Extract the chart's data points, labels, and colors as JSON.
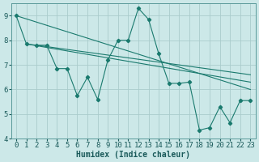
{
  "xlabel": "Humidex (Indice chaleur)",
  "ylabel": "",
  "bg_color": "#cce8e8",
  "grid_color": "#aacccc",
  "line_color": "#1a7a6e",
  "xlim": [
    -0.5,
    23.5
  ],
  "ylim": [
    4,
    9.5
  ],
  "yticks": [
    4,
    5,
    6,
    7,
    8,
    9
  ],
  "xticks": [
    0,
    1,
    2,
    3,
    4,
    5,
    6,
    7,
    8,
    9,
    10,
    11,
    12,
    13,
    14,
    15,
    16,
    17,
    18,
    19,
    20,
    21,
    22,
    23
  ],
  "series": [
    [
      0,
      9.0
    ],
    [
      1,
      7.85
    ],
    [
      2,
      7.8
    ],
    [
      3,
      7.8
    ],
    [
      4,
      6.85
    ],
    [
      5,
      6.85
    ],
    [
      6,
      5.75
    ],
    [
      7,
      6.5
    ],
    [
      8,
      5.6
    ],
    [
      9,
      7.2
    ],
    [
      10,
      8.0
    ],
    [
      11,
      8.0
    ],
    [
      12,
      9.3
    ],
    [
      13,
      8.85
    ],
    [
      14,
      7.45
    ],
    [
      15,
      6.25
    ],
    [
      16,
      6.25
    ],
    [
      17,
      6.3
    ],
    [
      18,
      4.35
    ],
    [
      19,
      4.45
    ],
    [
      20,
      5.3
    ],
    [
      21,
      4.65
    ],
    [
      22,
      5.55
    ],
    [
      23,
      5.55
    ]
  ],
  "trend_lines": [
    {
      "x": [
        0,
        23
      ],
      "y": [
        9.0,
        6.0
      ]
    },
    {
      "x": [
        1,
        23
      ],
      "y": [
        7.85,
        6.3
      ]
    },
    {
      "x": [
        2,
        23
      ],
      "y": [
        7.8,
        6.6
      ]
    }
  ],
  "xlabel_fontsize": 7,
  "tick_fontsize": 6.5
}
